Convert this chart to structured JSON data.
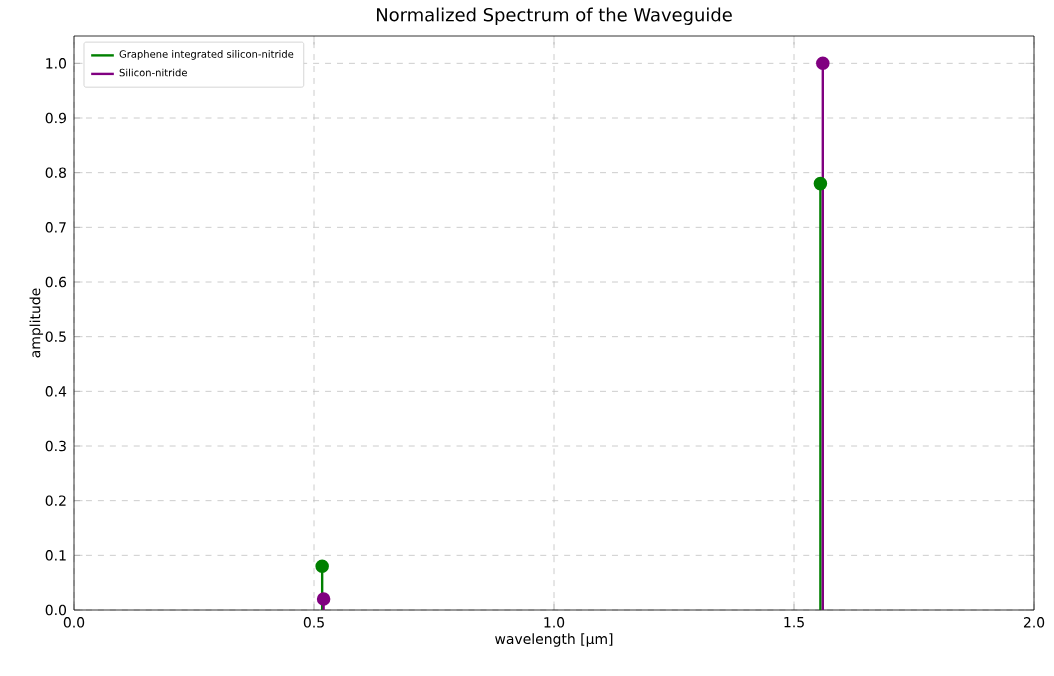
{
  "chart_data": {
    "type": "lollipop",
    "title": "Normalized Spectrum of the Waveguide",
    "xlabel": "wavelength [μm]",
    "ylabel": "amplitude",
    "series": [
      {
        "name": "Graphene integrated silicon-nitride",
        "color": "#008000",
        "x": [
          0.517,
          1.555
        ],
        "values": [
          0.08,
          0.78
        ]
      },
      {
        "name": "Silicon-nitride",
        "color": "#800080",
        "x": [
          0.52,
          1.56
        ],
        "values": [
          0.02,
          1.0
        ]
      }
    ],
    "xlim": [
      0,
      2
    ],
    "xticks": [
      {
        "value": 0,
        "label": "0.0"
      },
      0.5,
      {
        "value": 1,
        "label": "1.0"
      },
      1.5,
      {
        "value": 2,
        "label": "2.0"
      }
    ],
    "ylim": [
      0,
      1.05
    ],
    "yticks": [
      {
        "value": 0,
        "label": "0.0"
      },
      0.1,
      0.2,
      0.3,
      0.4,
      0.5,
      0.6,
      0.7,
      0.8,
      0.9,
      {
        "value": 1,
        "label": "1.0"
      }
    ],
    "grid": true,
    "legend": "top left",
    "marker": "circle"
  }
}
